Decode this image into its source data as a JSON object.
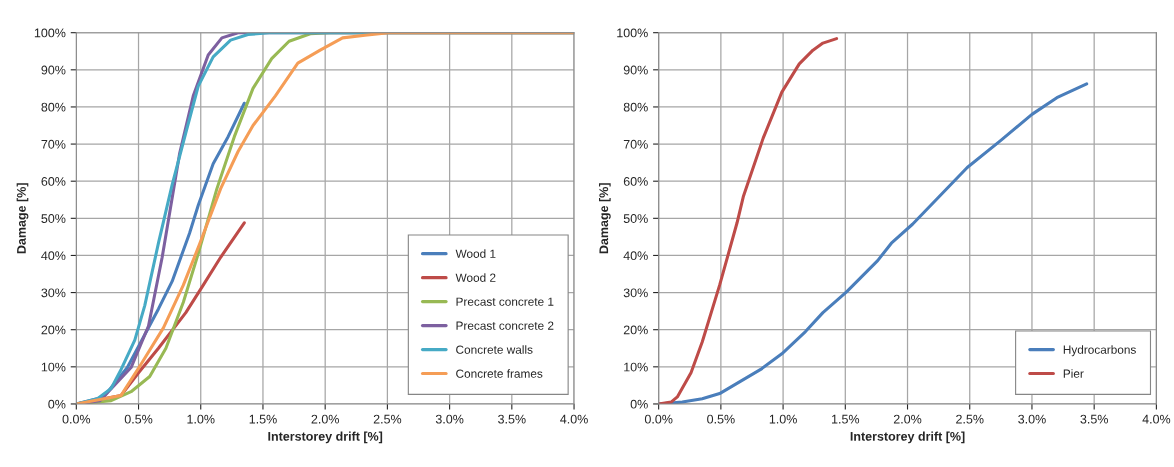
{
  "chart_data": [
    {
      "type": "line",
      "xlabel": "Interstorey drift [%]",
      "ylabel": "Damage [%]",
      "xlim": [
        0,
        4
      ],
      "ylim": [
        0,
        100
      ],
      "xticks": [
        {
          "value": 0,
          "label": "0.0%"
        },
        {
          "value": 0.5,
          "label": "0.5%"
        },
        {
          "value": 1,
          "label": "1.0%"
        },
        {
          "value": 1.5,
          "label": "1.5%"
        },
        {
          "value": 2,
          "label": "2.0%"
        },
        {
          "value": 2.5,
          "label": "2.5%"
        },
        {
          "value": 3,
          "label": "3.0%"
        },
        {
          "value": 3.5,
          "label": "3.5%"
        },
        {
          "value": 4,
          "label": "4.0%"
        }
      ],
      "yticks": [
        {
          "value": 0,
          "label": "0%"
        },
        {
          "value": 10,
          "label": "10%"
        },
        {
          "value": 20,
          "label": "20%"
        },
        {
          "value": 30,
          "label": "30%"
        },
        {
          "value": 40,
          "label": "40%"
        },
        {
          "value": 50,
          "label": "50%"
        },
        {
          "value": 60,
          "label": "60%"
        },
        {
          "value": 70,
          "label": "70%"
        },
        {
          "value": 80,
          "label": "80%"
        },
        {
          "value": 90,
          "label": "90%"
        },
        {
          "value": 100,
          "label": "100%"
        }
      ],
      "grid": true,
      "legend": "bottom right",
      "marker": "none",
      "line_style": "solid",
      "series": [
        {
          "name": "Wood 1",
          "color": "#4a7ebb",
          "x": [
            0,
            0.22,
            0.41,
            0.66,
            0.77,
            0.91,
            0.98,
            1.1,
            1.22,
            1.35
          ],
          "values": [
            0,
            1.9,
            9.8,
            25.6,
            33,
            46,
            53.5,
            64.7,
            72,
            81
          ]
        },
        {
          "name": "Wood 2",
          "color": "#be4b48",
          "x": [
            0,
            0.36,
            0.5,
            0.66,
            0.88,
            1.02,
            1.16,
            1.35
          ],
          "values": [
            0,
            2.3,
            8.4,
            15,
            24.6,
            32,
            39.5,
            48.8
          ]
        },
        {
          "name": "Precast concrete 1",
          "color": "#98b954",
          "x": [
            0,
            0.28,
            0.44,
            0.59,
            0.72,
            0.86,
            0.98,
            1.13,
            1.27,
            1.42,
            1.57,
            1.71,
            1.88,
            2.04,
            4.0
          ],
          "values": [
            0,
            0.9,
            3.3,
            7.4,
            15,
            27.4,
            40.5,
            58,
            72,
            85,
            93,
            97.7,
            99.7,
            100,
            100
          ]
        },
        {
          "name": "Precast concrete 2",
          "color": "#7d60a0",
          "x": [
            0,
            0.19,
            0.44,
            0.58,
            0.69,
            0.83,
            0.94,
            1.06,
            1.17,
            1.3,
            4.0
          ],
          "values": [
            0,
            0.9,
            9.8,
            21,
            39.5,
            67.4,
            83,
            94,
            98.6,
            100,
            100
          ]
        },
        {
          "name": "Concrete walls",
          "color": "#46aac5",
          "x": [
            0,
            0.17,
            0.28,
            0.36,
            0.47,
            0.55,
            0.66,
            0.77,
            0.88,
            0.98,
            1.1,
            1.24,
            1.38,
            1.55,
            4.0
          ],
          "values": [
            0,
            1.4,
            4.2,
            9.3,
            17.2,
            26.5,
            43.3,
            59,
            73,
            85.6,
            93.5,
            98,
            99.5,
            100,
            100
          ]
        },
        {
          "name": "Concrete frames",
          "color": "#f59d56",
          "x": [
            0,
            0.36,
            0.52,
            0.7,
            0.86,
            0.99,
            1.16,
            1.3,
            1.42,
            1.6,
            1.78,
            1.96,
            2.14,
            2.32,
            2.51,
            4.0
          ],
          "values": [
            0,
            2.3,
            10.7,
            20.5,
            32,
            43,
            58,
            68,
            75,
            83,
            91.8,
            95.3,
            98.6,
            99.3,
            100,
            100
          ]
        }
      ]
    },
    {
      "type": "line",
      "xlabel": "Interstorey drift [%]",
      "ylabel": "Damage [%]",
      "xlim": [
        0,
        4
      ],
      "ylim": [
        0,
        100
      ],
      "xticks": [
        {
          "value": 0,
          "label": "0.0%"
        },
        {
          "value": 0.5,
          "label": "0.5%"
        },
        {
          "value": 1,
          "label": "1.0%"
        },
        {
          "value": 1.5,
          "label": "1.5%"
        },
        {
          "value": 2,
          "label": "2.0%"
        },
        {
          "value": 2.5,
          "label": "2.5%"
        },
        {
          "value": 3,
          "label": "3.0%"
        },
        {
          "value": 3.5,
          "label": "3.5%"
        },
        {
          "value": 4,
          "label": "4.0%"
        }
      ],
      "yticks": [
        {
          "value": 0,
          "label": "0%"
        },
        {
          "value": 10,
          "label": "10%"
        },
        {
          "value": 20,
          "label": "20%"
        },
        {
          "value": 30,
          "label": "30%"
        },
        {
          "value": 40,
          "label": "40%"
        },
        {
          "value": 50,
          "label": "50%"
        },
        {
          "value": 60,
          "label": "60%"
        },
        {
          "value": 70,
          "label": "70%"
        },
        {
          "value": 80,
          "label": "80%"
        },
        {
          "value": 90,
          "label": "90%"
        },
        {
          "value": 100,
          "label": "100%"
        }
      ],
      "grid": true,
      "legend": "bottom right",
      "marker": "none",
      "line_style": "solid",
      "series": [
        {
          "name": "Hydrocarbons",
          "color": "#4a7ebb",
          "x": [
            0,
            0.19,
            0.35,
            0.49,
            0.82,
            0.99,
            1.18,
            1.32,
            1.51,
            1.76,
            1.87,
            2.04,
            2.48,
            2.75,
            3.0,
            3.2,
            3.44
          ],
          "values": [
            0,
            0.5,
            1.4,
            2.8,
            9.3,
            13.5,
            19.5,
            24.6,
            30.2,
            38.6,
            43.3,
            48.4,
            63.7,
            71,
            78,
            82.5,
            86.2
          ]
        },
        {
          "name": "Pier",
          "color": "#be4b48",
          "x": [
            0,
            0.1,
            0.15,
            0.26,
            0.35,
            0.49,
            0.63,
            0.68,
            0.84,
            0.99,
            1.13,
            1.24,
            1.32,
            1.43
          ],
          "values": [
            0,
            0.5,
            1.9,
            8.4,
            16.7,
            32,
            48.8,
            55.8,
            71.6,
            84,
            91.6,
            95.3,
            97.2,
            98.4
          ]
        }
      ]
    }
  ]
}
